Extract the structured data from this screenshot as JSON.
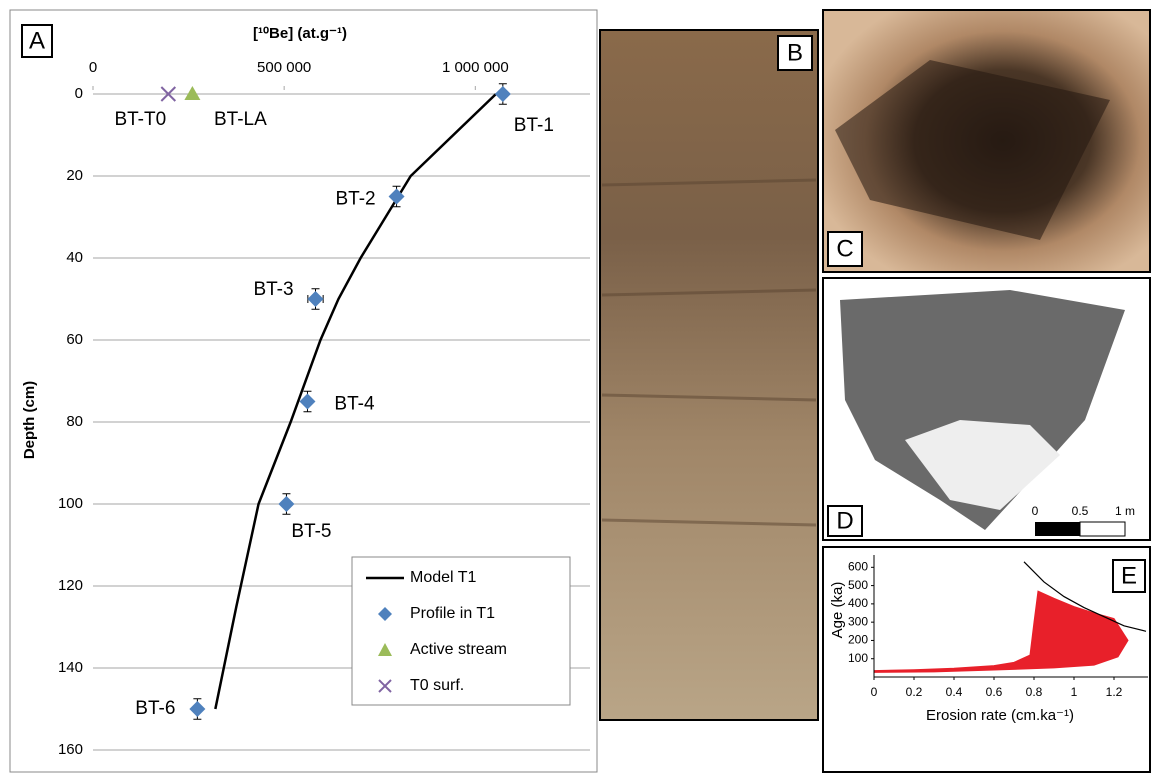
{
  "chart_data": [
    {
      "type": "scatter",
      "panel_label": "A",
      "x_label": "[¹⁰Be] (at.g⁻¹)",
      "y_label": "Depth (cm)",
      "xlim": [
        0,
        1300000
      ],
      "xticks": [
        0,
        {
          "value": 500000,
          "label": "500 000"
        },
        {
          "value": 1000000,
          "label": "1 000 000"
        }
      ],
      "ylim": [
        0,
        160
      ],
      "yticks": [
        0,
        20,
        40,
        60,
        80,
        100,
        120,
        140,
        160
      ],
      "y_inverted": true,
      "grid": true,
      "legend": "lower right",
      "series": [
        {
          "name": "Model T1",
          "type": "line",
          "color": "#000000",
          "x": [
            1054000,
            831000,
            700000,
            642000,
            595000,
            517000,
            433000,
            375000,
            320000
          ],
          "y": [
            0,
            20,
            40,
            50,
            60,
            80,
            100,
            125,
            150
          ]
        },
        {
          "name": "Profile in T1",
          "type": "scatter",
          "marker": "diamond",
          "color": "#4f81bd",
          "x": [
            1072000,
            794000,
            582000,
            561000,
            506000,
            273000
          ],
          "y": [
            0,
            25,
            50,
            75,
            100,
            150
          ],
          "x_error": [
            0,
            0,
            20000,
            0,
            0,
            0
          ],
          "y_error": [
            2.5,
            2.5,
            2.5,
            2.5,
            2.5,
            2.5
          ],
          "point_labels": [
            "BT-1",
            "BT-2",
            "BT-3",
            "BT-4",
            "BT-5",
            "BT-6"
          ]
        },
        {
          "name": "Active stream",
          "type": "scatter",
          "marker": "triangle",
          "color": "#9bbb59",
          "x": [
            260000
          ],
          "y": [
            0
          ],
          "point_labels": [
            "BT-LA"
          ]
        },
        {
          "name": "T0 surf.",
          "type": "scatter",
          "marker": "x",
          "color": "#8064a2",
          "x": [
            197000
          ],
          "y": [
            0
          ],
          "point_labels": [
            "BT-T0"
          ]
        }
      ]
    },
    {
      "type": "scatter",
      "panel_label": "E",
      "x_label": "Erosion rate (cm.ka⁻¹)",
      "y_label": "Age (ka)",
      "xlim": [
        0,
        1.37
      ],
      "xticks": [
        0,
        0.2,
        0.4,
        0.6,
        0.8,
        1,
        1.2
      ],
      "ylim": [
        0,
        640
      ],
      "yticks": [
        100,
        200,
        300,
        400,
        500,
        600
      ],
      "series": [
        {
          "type": "area",
          "color": "#e8202a",
          "x": [
            0,
            0.2,
            0.4,
            0.6,
            0.7,
            0.78,
            0.8,
            0.82,
            0.9,
            1.0,
            1.1,
            1.2,
            1.27,
            1.22,
            1.1,
            0.9,
            0.6,
            0.3,
            0
          ],
          "y": [
            35,
            40,
            48,
            62,
            80,
            120,
            300,
            470,
            430,
            385,
            350,
            320,
            200,
            110,
            65,
            50,
            38,
            28,
            25
          ]
        },
        {
          "type": "line",
          "color": "#000000",
          "x": [
            0.75,
            0.85,
            0.95,
            1.05,
            1.15,
            1.25,
            1.36
          ],
          "y": [
            630,
            520,
            440,
            380,
            330,
            280,
            250
          ]
        }
      ]
    }
  ],
  "photos": [
    {
      "label": "B"
    },
    {
      "label": "C"
    },
    {
      "label": "D",
      "scale_labels": [
        "0",
        "0.5",
        "1 m"
      ]
    }
  ]
}
